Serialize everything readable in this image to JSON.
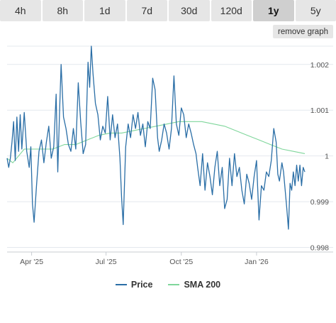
{
  "range_tabs": [
    {
      "label": "4h",
      "active": false
    },
    {
      "label": "8h",
      "active": false
    },
    {
      "label": "1d",
      "active": false
    },
    {
      "label": "7d",
      "active": false
    },
    {
      "label": "30d",
      "active": false
    },
    {
      "label": "120d",
      "active": false
    },
    {
      "label": "1y",
      "active": true
    },
    {
      "label": "5y",
      "active": false
    }
  ],
  "remove_graph_label": "remove graph",
  "colors": {
    "price": "#2a6ea6",
    "sma": "#7fd69b",
    "grid": "#e4e8ee",
    "tab_bg": "#e6e6e6",
    "tab_active_bg": "#cfcfcf"
  },
  "chart_data": {
    "type": "line",
    "x_ticks": [
      {
        "label": "Apr '25",
        "date": "2025-04-01"
      },
      {
        "label": "Jul '25",
        "date": "2025-07-01"
      },
      {
        "label": "Oct '25",
        "date": "2025-10-01"
      },
      {
        "label": "Jan '26",
        "date": "2026-01-01"
      }
    ],
    "y_ticks": [
      0.998,
      0.999,
      1,
      1.001,
      1.002
    ],
    "y_tick_labels": [
      "0.998",
      "0.999",
      "1",
      "1.001",
      "1.002"
    ],
    "x_range": [
      "2025-03-02",
      "2026-03-01"
    ],
    "y_range": [
      0.9979,
      1.0024
    ],
    "grid": "horizontal",
    "legend_position": "bottom-center",
    "series": [
      {
        "name": "Price",
        "points": [
          [
            "2025-03-02",
            0.99995
          ],
          [
            "2025-03-04",
            0.99975
          ],
          [
            "2025-03-06",
            0.99995
          ],
          [
            "2025-03-08",
            1.0003
          ],
          [
            "2025-03-10",
            1.00075
          ],
          [
            "2025-03-12",
            0.9999
          ],
          [
            "2025-03-14",
            1.00085
          ],
          [
            "2025-03-16",
            1.0001
          ],
          [
            "2025-03-18",
            1.0009
          ],
          [
            "2025-03-20",
            1.00015
          ],
          [
            "2025-03-23",
            1.00095
          ],
          [
            "2025-03-26",
            1.0001
          ],
          [
            "2025-03-29",
            0.99975
          ],
          [
            "2025-03-31",
            1.0002
          ],
          [
            "2025-04-02",
            0.99895
          ],
          [
            "2025-04-04",
            0.99855
          ],
          [
            "2025-04-07",
            0.99935
          ],
          [
            "2025-04-10",
            1.0001
          ],
          [
            "2025-04-13",
            1.00035
          ],
          [
            "2025-04-16",
            0.99985
          ],
          [
            "2025-04-19",
            1.0003
          ],
          [
            "2025-04-22",
            1.00065
          ],
          [
            "2025-04-25",
            0.99995
          ],
          [
            "2025-04-28",
            1.0002
          ],
          [
            "2025-05-01",
            1.00135
          ],
          [
            "2025-05-03",
            0.99965
          ],
          [
            "2025-05-05",
            1.00085
          ],
          [
            "2025-05-07",
            1.002
          ],
          [
            "2025-05-10",
            1.00085
          ],
          [
            "2025-05-13",
            1.0006
          ],
          [
            "2025-05-16",
            1.00025
          ],
          [
            "2025-05-19",
            1.0001
          ],
          [
            "2025-05-22",
            1.0006
          ],
          [
            "2025-05-25",
            1.00015
          ],
          [
            "2025-05-28",
            1.0016
          ],
          [
            "2025-05-31",
            1.00075
          ],
          [
            "2025-06-03",
            1.00005
          ],
          [
            "2025-06-06",
            1.00025
          ],
          [
            "2025-06-09",
            1.00205
          ],
          [
            "2025-06-11",
            1.0015
          ],
          [
            "2025-06-13",
            1.0024
          ],
          [
            "2025-06-15",
            1.0018
          ],
          [
            "2025-06-18",
            1.00115
          ],
          [
            "2025-06-21",
            1.0009
          ],
          [
            "2025-06-24",
            1.00035
          ],
          [
            "2025-06-27",
            1.00065
          ],
          [
            "2025-06-30",
            1.0005
          ],
          [
            "2025-07-03",
            1.0013
          ],
          [
            "2025-07-06",
            1.00035
          ],
          [
            "2025-07-09",
            1.0009
          ],
          [
            "2025-07-12",
            1.0004
          ],
          [
            "2025-07-15",
            1.0007
          ],
          [
            "2025-07-18",
            0.99995
          ],
          [
            "2025-07-20",
            0.9991
          ],
          [
            "2025-07-22",
            0.9985
          ],
          [
            "2025-07-25",
            1.0002
          ],
          [
            "2025-07-28",
            1.0007
          ],
          [
            "2025-07-31",
            1.0004
          ],
          [
            "2025-08-03",
            1.0009
          ],
          [
            "2025-08-06",
            1.0006
          ],
          [
            "2025-08-09",
            1.00095
          ],
          [
            "2025-08-12",
            1.00045
          ],
          [
            "2025-08-15",
            1.0007
          ],
          [
            "2025-08-18",
            1.0002
          ],
          [
            "2025-08-21",
            1.00075
          ],
          [
            "2025-08-24",
            1.0006
          ],
          [
            "2025-08-27",
            1.0017
          ],
          [
            "2025-08-30",
            1.00145
          ],
          [
            "2025-09-02",
            1.0004
          ],
          [
            "2025-09-04",
            1.0001
          ],
          [
            "2025-09-07",
            1.00035
          ],
          [
            "2025-09-10",
            1.0007
          ],
          [
            "2025-09-13",
            1.0005
          ],
          [
            "2025-09-16",
            1.00015
          ],
          [
            "2025-09-19",
            1.0006
          ],
          [
            "2025-09-22",
            1.00175
          ],
          [
            "2025-09-25",
            1.0007
          ],
          [
            "2025-09-28",
            1.00045
          ],
          [
            "2025-10-01",
            1.00105
          ],
          [
            "2025-10-04",
            1.0009
          ],
          [
            "2025-10-07",
            1.0004
          ],
          [
            "2025-10-10",
            1.0007
          ],
          [
            "2025-10-13",
            1.0005
          ],
          [
            "2025-10-16",
            1.00025
          ],
          [
            "2025-10-19",
            1.00005
          ],
          [
            "2025-10-21",
            0.99975
          ],
          [
            "2025-10-24",
            0.99935
          ],
          [
            "2025-10-27",
            1.00005
          ],
          [
            "2025-10-30",
            0.99925
          ],
          [
            "2025-11-02",
            0.99985
          ],
          [
            "2025-11-05",
            0.99955
          ],
          [
            "2025-11-08",
            0.99915
          ],
          [
            "2025-11-11",
            0.99975
          ],
          [
            "2025-11-14",
            1.0001
          ],
          [
            "2025-11-17",
            0.99935
          ],
          [
            "2025-11-20",
            0.99975
          ],
          [
            "2025-11-23",
            0.99885
          ],
          [
            "2025-11-26",
            0.99905
          ],
          [
            "2025-11-29",
            0.99995
          ],
          [
            "2025-12-02",
            0.99935
          ],
          [
            "2025-12-05",
            1.00005
          ],
          [
            "2025-12-08",
            0.99955
          ],
          [
            "2025-12-11",
            0.99975
          ],
          [
            "2025-12-14",
            0.99925
          ],
          [
            "2025-12-17",
            0.99895
          ],
          [
            "2025-12-20",
            0.9996
          ],
          [
            "2025-12-23",
            0.9994
          ],
          [
            "2025-12-26",
            0.99905
          ],
          [
            "2025-12-29",
            0.99955
          ],
          [
            "2026-01-01",
            0.9999
          ],
          [
            "2026-01-04",
            0.9986
          ],
          [
            "2026-01-07",
            0.99935
          ],
          [
            "2026-01-10",
            0.99925
          ],
          [
            "2026-01-13",
            0.99965
          ],
          [
            "2026-01-16",
            0.99955
          ],
          [
            "2026-01-19",
            0.9999
          ],
          [
            "2026-01-22",
            1.0006
          ],
          [
            "2026-01-25",
            1.0003
          ],
          [
            "2026-01-27",
            0.9996
          ],
          [
            "2026-01-29",
            0.99945
          ],
          [
            "2026-02-01",
            0.99985
          ],
          [
            "2026-02-03",
            0.99965
          ],
          [
            "2026-02-05",
            0.99925
          ],
          [
            "2026-02-07",
            0.99885
          ],
          [
            "2026-02-09",
            0.9984
          ],
          [
            "2026-02-11",
            0.9994
          ],
          [
            "2026-02-13",
            0.99925
          ],
          [
            "2026-02-15",
            0.99965
          ],
          [
            "2026-02-17",
            0.99935
          ],
          [
            "2026-02-19",
            0.9998
          ],
          [
            "2026-02-21",
            0.99945
          ],
          [
            "2026-02-23",
            0.9998
          ],
          [
            "2026-02-25",
            0.99935
          ],
          [
            "2026-02-27",
            0.99975
          ],
          [
            "2026-03-01",
            0.99965
          ]
        ]
      },
      {
        "name": "SMA 200",
        "points": [
          [
            "2025-03-02",
            0.99995
          ],
          [
            "2025-03-09",
            0.99985
          ],
          [
            "2025-03-16",
            1.0
          ],
          [
            "2025-03-23",
            1.00015
          ],
          [
            "2025-03-30",
            1.00015
          ],
          [
            "2025-04-06",
            1.00015
          ],
          [
            "2025-04-13",
            1.00015
          ],
          [
            "2025-04-27",
            1.00015
          ],
          [
            "2025-05-11",
            1.00025
          ],
          [
            "2025-05-25",
            1.00025
          ],
          [
            "2025-06-08",
            1.00035
          ],
          [
            "2025-06-22",
            1.00045
          ],
          [
            "2025-07-06",
            1.0005
          ],
          [
            "2025-07-20",
            1.0005
          ],
          [
            "2025-08-03",
            1.00055
          ],
          [
            "2025-08-17",
            1.0006
          ],
          [
            "2025-08-31",
            1.00065
          ],
          [
            "2025-09-14",
            1.0007
          ],
          [
            "2025-09-28",
            1.00075
          ],
          [
            "2025-10-12",
            1.00075
          ],
          [
            "2025-10-26",
            1.00075
          ],
          [
            "2025-11-09",
            1.0007
          ],
          [
            "2025-11-23",
            1.00065
          ],
          [
            "2025-12-07",
            1.00055
          ],
          [
            "2025-12-21",
            1.00045
          ],
          [
            "2026-01-04",
            1.00035
          ],
          [
            "2026-01-18",
            1.00025
          ],
          [
            "2026-02-01",
            1.00015
          ],
          [
            "2026-02-15",
            1.0001
          ],
          [
            "2026-03-01",
            1.00005
          ]
        ]
      }
    ]
  }
}
